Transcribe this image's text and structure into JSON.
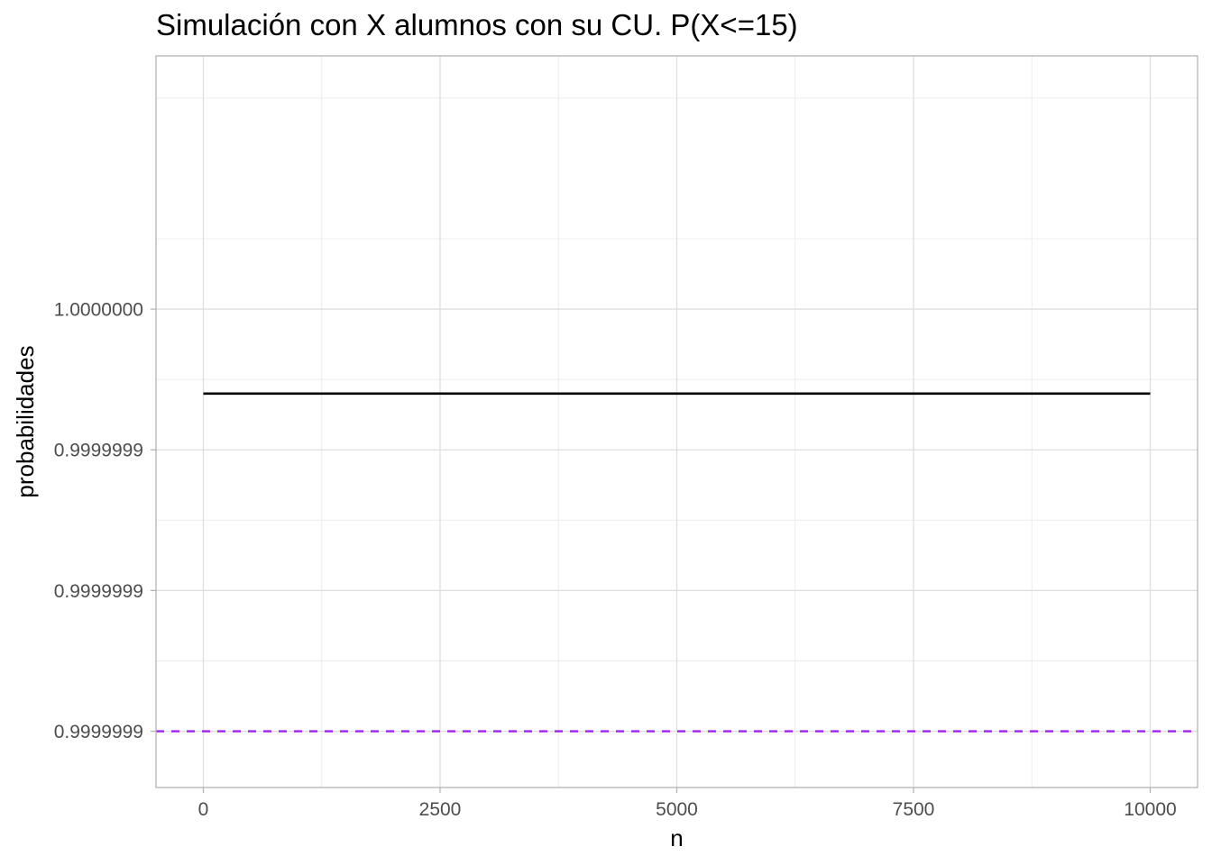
{
  "chart_data": {
    "type": "line",
    "title": "Simulación con X alumnos con su CU. P(X<=15)",
    "xlabel": "n",
    "ylabel": "probabilidades",
    "xlim": [
      -500,
      10500
    ],
    "x_ticks": [
      0,
      2500,
      5000,
      7500,
      10000
    ],
    "x_tick_labels": [
      "0",
      "2500",
      "5000",
      "7500",
      "10000"
    ],
    "x_minor_ticks": [
      1250,
      3750,
      6250,
      8750
    ],
    "ylim": [
      0.99999986,
      1.00000012
    ],
    "y_ticks": [
      0.99999988,
      0.99999993,
      0.99999998,
      1.00000003
    ],
    "y_tick_labels": [
      "0.9999999",
      "0.9999999",
      "0.9999999",
      "1.0000000"
    ],
    "y_minor_ticks": [
      0.999999905,
      0.999999955,
      1.000000005,
      1.000000055,
      1.000000105
    ],
    "grid": true,
    "series": [
      {
        "style": "solid",
        "color": "#000000",
        "x": [
          0,
          10000
        ],
        "y": [
          1.0,
          1.0
        ]
      }
    ],
    "reference_lines": [
      {
        "orientation": "horizontal",
        "style": "dashed",
        "color": "#a020f0",
        "y": 0.99999988
      }
    ]
  }
}
